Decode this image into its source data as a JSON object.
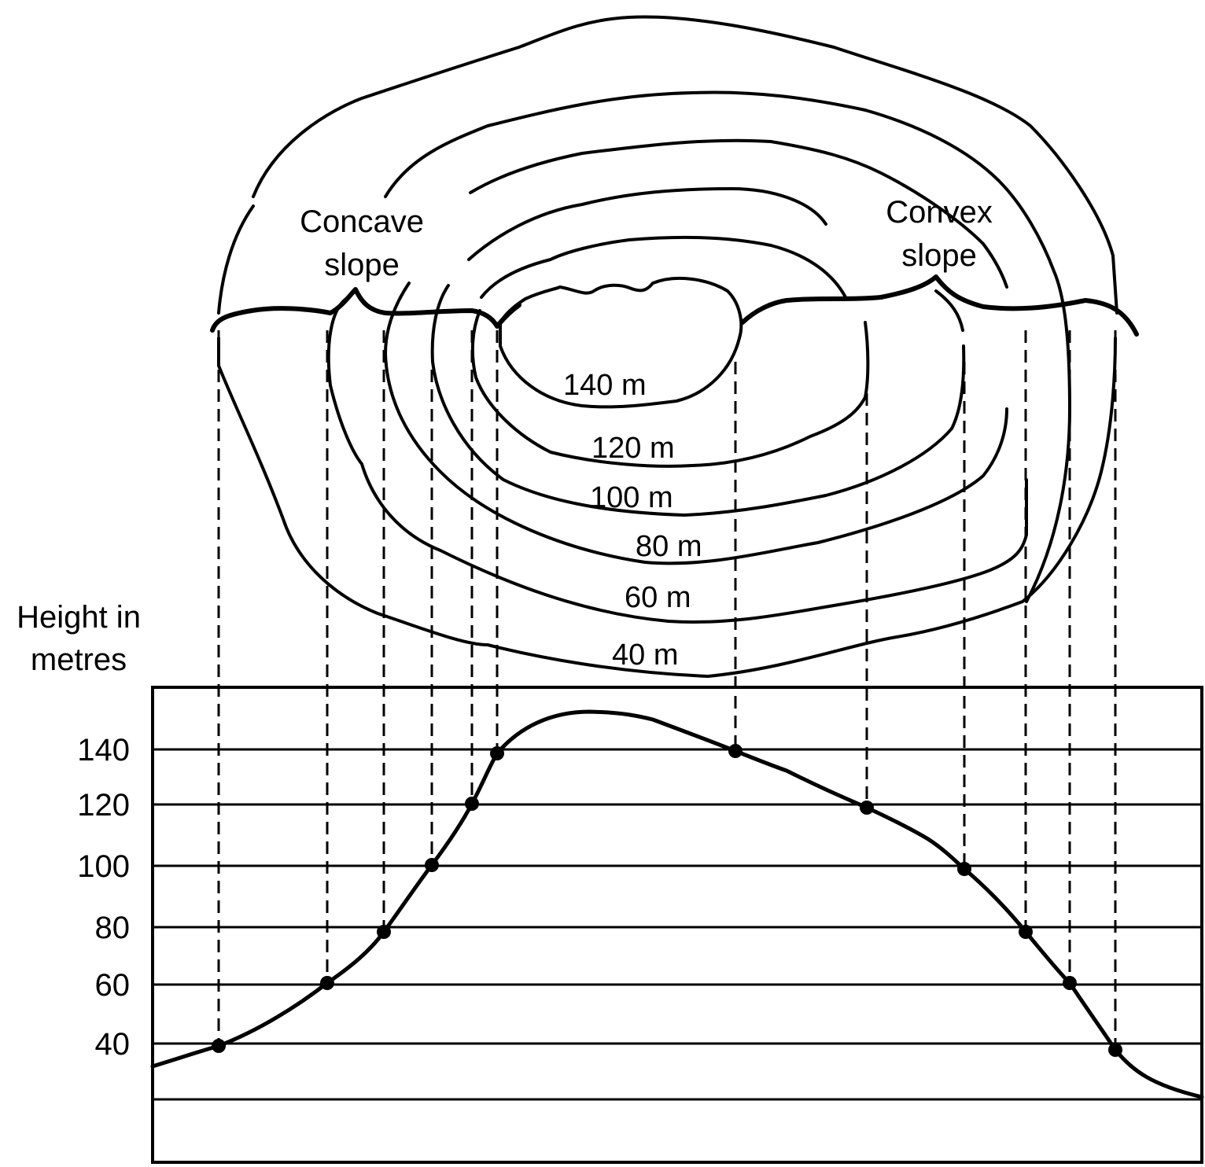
{
  "axis_title_lines": [
    "Height in",
    "metres"
  ],
  "annotations": {
    "concave": [
      "Concave",
      "slope"
    ],
    "convex": [
      "Convex",
      "slope"
    ]
  },
  "contours": [
    {
      "height": 140,
      "label": "140 m"
    },
    {
      "height": 120,
      "label": "120 m"
    },
    {
      "height": 100,
      "label": "100 m"
    },
    {
      "height": 80,
      "label": "80 m"
    },
    {
      "height": 60,
      "label": "60 m"
    },
    {
      "height": 40,
      "label": "40 m"
    }
  ],
  "y_ticks": [
    140,
    120,
    100,
    80,
    60,
    40
  ],
  "colors": {
    "ink": "#000000",
    "background": "#ffffff"
  }
}
